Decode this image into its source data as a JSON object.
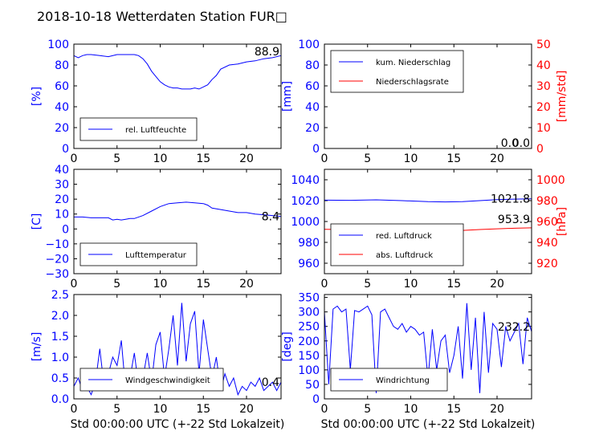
{
  "title": "2018-10-18 Wetterdaten Station FUR□",
  "xlabel": "Std 00:00:00 UTC (+-22 Std Lokalzeit)",
  "colors": {
    "blue": "#0000ff",
    "red": "#ff0000",
    "black": "#000000"
  },
  "chart_data": [
    {
      "type": "line",
      "ylabel": "[%]",
      "ylim": [
        0,
        100
      ],
      "yticks": [
        "0",
        "20",
        "40",
        "60",
        "80",
        "100"
      ],
      "xlim": [
        0,
        24
      ],
      "xticks": [
        "0",
        "5",
        "10",
        "15",
        "20"
      ],
      "legend": "lower-left",
      "value_label": "88.9",
      "series": [
        {
          "name": "rel. Luftfeuchte",
          "color": "#0000ff",
          "x": [
            0,
            0.5,
            1,
            1.5,
            2,
            3,
            4,
            5,
            6,
            7,
            7.5,
            8,
            8.5,
            9,
            9.5,
            10,
            10.5,
            11,
            11.5,
            12,
            12.5,
            13,
            13.5,
            14,
            14.5,
            15,
            15.5,
            16,
            16.5,
            17,
            18,
            19,
            20,
            21,
            22,
            23,
            24
          ],
          "y": [
            89,
            87,
            89,
            90,
            90,
            89,
            88,
            90,
            90,
            90,
            89,
            86,
            81,
            74,
            69,
            64,
            61,
            59,
            58,
            58,
            57,
            57,
            57,
            58,
            57,
            59,
            61,
            66,
            70,
            76,
            80,
            81,
            83,
            84,
            86,
            87,
            89
          ]
        }
      ]
    },
    {
      "type": "line",
      "ylabel": "[mm]",
      "ylim": [
        0,
        100
      ],
      "yticks": [
        "0",
        "20",
        "40",
        "60",
        "80",
        "100"
      ],
      "ylabel_right": "[mm/std]",
      "ylim_right": [
        0,
        50
      ],
      "yticks_right": [
        "0",
        "10",
        "20",
        "30",
        "40",
        "50"
      ],
      "xlim": [
        0,
        24
      ],
      "xticks": [
        "0",
        "5",
        "10",
        "15",
        "20"
      ],
      "legend": "upper-left",
      "value_label": "0.0",
      "value_label_2": "0.0",
      "series": [
        {
          "name": "kum. Niederschlag",
          "color": "#0000ff",
          "axis": "left",
          "x": [
            0,
            24
          ],
          "y": [
            0,
            0
          ]
        },
        {
          "name": "Niederschlagsrate",
          "color": "#ff0000",
          "axis": "right",
          "x": [
            0,
            24
          ],
          "y": [
            0,
            0
          ]
        }
      ]
    },
    {
      "type": "line",
      "ylabel": "[C]",
      "ylim": [
        -30,
        40
      ],
      "yticks": [
        "−30",
        "−20",
        "−10",
        "0",
        "10",
        "20",
        "30",
        "40"
      ],
      "xlim": [
        0,
        24
      ],
      "xticks": [
        "0",
        "5",
        "10",
        "15",
        "20"
      ],
      "legend": "lower-left",
      "value_label": "8.4",
      "series": [
        {
          "name": "Lufttemperatur",
          "color": "#0000ff",
          "x": [
            0,
            1,
            2,
            3,
            4,
            4.5,
            5,
            5.5,
            6,
            6.5,
            7,
            8,
            9,
            10,
            11,
            12,
            13,
            14,
            15,
            15.5,
            16,
            17,
            18,
            19,
            20,
            21,
            22,
            23,
            24
          ],
          "y": [
            8,
            8,
            7.5,
            7.5,
            7.5,
            6,
            6.5,
            6,
            6.5,
            7,
            7,
            9,
            12,
            15,
            17,
            17.5,
            18,
            17.5,
            17,
            16,
            14,
            13,
            12,
            11,
            11,
            10,
            9.5,
            9,
            8.4
          ]
        }
      ]
    },
    {
      "type": "line",
      "ylabel": "",
      "ylim": [
        950,
        1050
      ],
      "yticks": [
        "960",
        "980",
        "1000",
        "1020",
        "1040"
      ],
      "ylabel_right": "[hPa]",
      "ylim_right": [
        910,
        1010
      ],
      "yticks_right": [
        "920",
        "940",
        "960",
        "980",
        "1000"
      ],
      "xlim": [
        0,
        24
      ],
      "xticks": [
        "0",
        "5",
        "10",
        "15",
        "20"
      ],
      "legend": "lower-left",
      "value_label": "1021.8",
      "value_label_2": "953.9",
      "series": [
        {
          "name": "red. Luftdruck",
          "color": "#0000ff",
          "axis": "left",
          "x": [
            0,
            3,
            6,
            9,
            12,
            14,
            16,
            18,
            20,
            22,
            24
          ],
          "y": [
            1020.5,
            1020.3,
            1020.8,
            1020.0,
            1019.0,
            1018.8,
            1019.0,
            1020.0,
            1021.0,
            1021.5,
            1021.8
          ]
        },
        {
          "name": "abs. Luftdruck",
          "color": "#ff0000",
          "axis": "right",
          "x": [
            0,
            3,
            6,
            9,
            12,
            14,
            16,
            18,
            20,
            22,
            24
          ],
          "y": [
            952.5,
            952.3,
            952.6,
            952.2,
            951.5,
            951.3,
            951.5,
            952.3,
            953.0,
            953.5,
            953.9
          ]
        }
      ]
    },
    {
      "type": "line",
      "ylabel": "[m/s]",
      "ylim": [
        0,
        2.5
      ],
      "yticks": [
        "0.0",
        "0.5",
        "1.0",
        "1.5",
        "2.0",
        "2.5"
      ],
      "xlim": [
        0,
        24
      ],
      "xticks": [
        "0",
        "5",
        "10",
        "15",
        "20"
      ],
      "legend": "lower-left",
      "value_label": "0.4",
      "series": [
        {
          "name": "Windgeschwindigkeit",
          "color": "#0000ff",
          "x": [
            0,
            0.5,
            1,
            1.5,
            2,
            2.5,
            3,
            3.5,
            4,
            4.5,
            5,
            5.5,
            6,
            6.5,
            7,
            7.5,
            8,
            8.5,
            9,
            9.5,
            10,
            10.5,
            11,
            11.5,
            12,
            12.5,
            13,
            13.5,
            14,
            14.5,
            15,
            15.5,
            16,
            16.5,
            17,
            17.5,
            18,
            18.5,
            19,
            19.5,
            20,
            20.5,
            21,
            21.5,
            22,
            22.5,
            23,
            23.5,
            24
          ],
          "y": [
            0.3,
            0.5,
            0.2,
            0.3,
            0.1,
            0.4,
            1.2,
            0.3,
            0.6,
            1.0,
            0.8,
            1.4,
            0.2,
            0.5,
            1.1,
            0.3,
            0.5,
            1.1,
            0.4,
            1.3,
            1.6,
            0.5,
            1.2,
            2.0,
            0.8,
            2.3,
            0.9,
            1.8,
            2.1,
            0.6,
            1.9,
            1.2,
            0.5,
            1.0,
            0.2,
            0.6,
            0.3,
            0.5,
            0.1,
            0.3,
            0.2,
            0.4,
            0.3,
            0.5,
            0.2,
            0.3,
            0.4,
            0.2,
            0.4
          ]
        }
      ]
    },
    {
      "type": "line",
      "ylabel": "[deg]",
      "ylim": [
        0,
        360
      ],
      "yticks": [
        "0",
        "50",
        "100",
        "150",
        "200",
        "250",
        "300",
        "350"
      ],
      "xlim": [
        0,
        24
      ],
      "xticks": [
        "0",
        "5",
        "10",
        "15",
        "20"
      ],
      "legend": "lower-left",
      "value_label": "232.2",
      "series": [
        {
          "name": "Windrichtung",
          "color": "#0000ff",
          "x": [
            0,
            0.5,
            1,
            1.5,
            2,
            2.5,
            3,
            3.5,
            4,
            4.5,
            5,
            5.5,
            6,
            6.5,
            7,
            7.5,
            8,
            8.5,
            9,
            9.5,
            10,
            10.5,
            11,
            11.5,
            12,
            12.5,
            13,
            13.5,
            14,
            14.5,
            15,
            15.5,
            16,
            16.5,
            17,
            17.5,
            18,
            18.5,
            19,
            19.5,
            20,
            20.5,
            21,
            21.5,
            22,
            22.5,
            23,
            23.5,
            24
          ],
          "y": [
            300,
            50,
            310,
            320,
            300,
            310,
            100,
            305,
            300,
            310,
            320,
            290,
            20,
            300,
            310,
            280,
            250,
            240,
            260,
            230,
            250,
            240,
            220,
            230,
            70,
            240,
            100,
            200,
            220,
            90,
            150,
            250,
            70,
            330,
            100,
            280,
            20,
            300,
            90,
            260,
            240,
            110,
            250,
            200,
            230,
            260,
            120,
            280,
            232
          ]
        }
      ]
    }
  ]
}
